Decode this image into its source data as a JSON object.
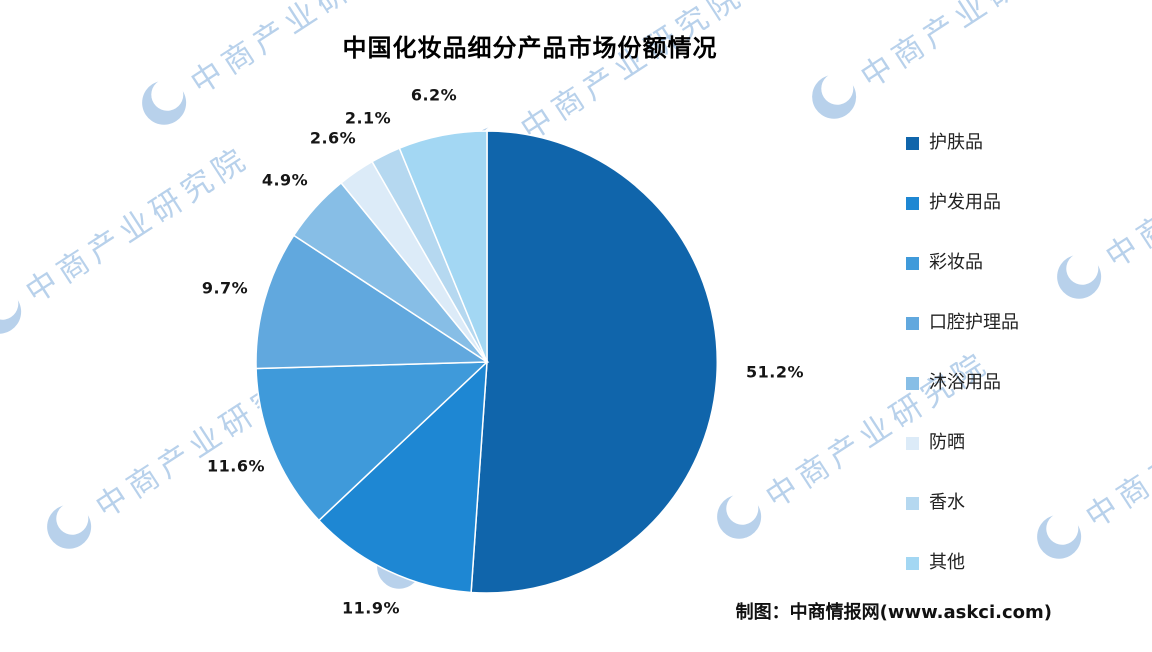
{
  "title": "中国化妆品细分产品市场份额情况",
  "watermark": {
    "text": "中商产业研究院"
  },
  "footer": {
    "credit": "制图：中商情报网(www.askci.com)"
  },
  "chart_data": {
    "type": "pie",
    "title": "中国化妆品细分产品市场份额情况",
    "direction": "clockwise",
    "start_angle_deg": 0,
    "value_suffix": "%",
    "legend_position": "right",
    "slices": [
      {
        "label": "护肤品",
        "value": 51.2,
        "color": "#1065ab"
      },
      {
        "label": "护发用品",
        "value": 11.9,
        "color": "#1e87d3"
      },
      {
        "label": "彩妆品",
        "value": 11.6,
        "color": "#3f9ada"
      },
      {
        "label": "口腔护理品",
        "value": 9.7,
        "color": "#61a8de"
      },
      {
        "label": "沐浴用品",
        "value": 4.9,
        "color": "#87bee6"
      },
      {
        "label": "防晒",
        "value": 2.6,
        "color": "#dcebf8"
      },
      {
        "label": "香水",
        "value": 2.1,
        "color": "#b5d8f0"
      },
      {
        "label": "其他",
        "value": 6.2,
        "color": "#a3d7f3"
      }
    ]
  }
}
